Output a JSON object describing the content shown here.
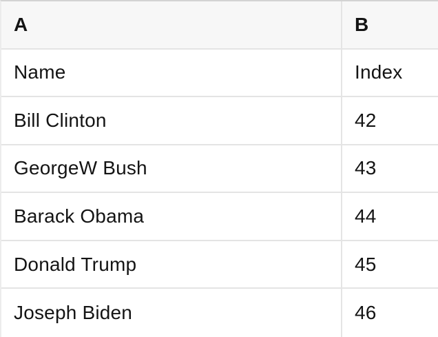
{
  "table": {
    "kind": "spreadsheet-preview",
    "column_headers": [
      {
        "label": "A"
      },
      {
        "label": "B"
      }
    ],
    "rows": [
      {
        "a": "Name",
        "b": "Index"
      },
      {
        "a": "Bill Clinton",
        "b": "42"
      },
      {
        "a": "GeorgeW Bush",
        "b": "43"
      },
      {
        "a": "Barack Obama",
        "b": "44"
      },
      {
        "a": "Donald Trump",
        "b": "45"
      },
      {
        "a": "Joseph Biden",
        "b": "46"
      }
    ]
  },
  "colors": {
    "header_background": "#f7f7f7",
    "row_background": "#ffffff",
    "grid_border": "#e4e4e4",
    "top_border": "#d3d3d3",
    "left_border": "#ececec",
    "text": "#141414"
  }
}
